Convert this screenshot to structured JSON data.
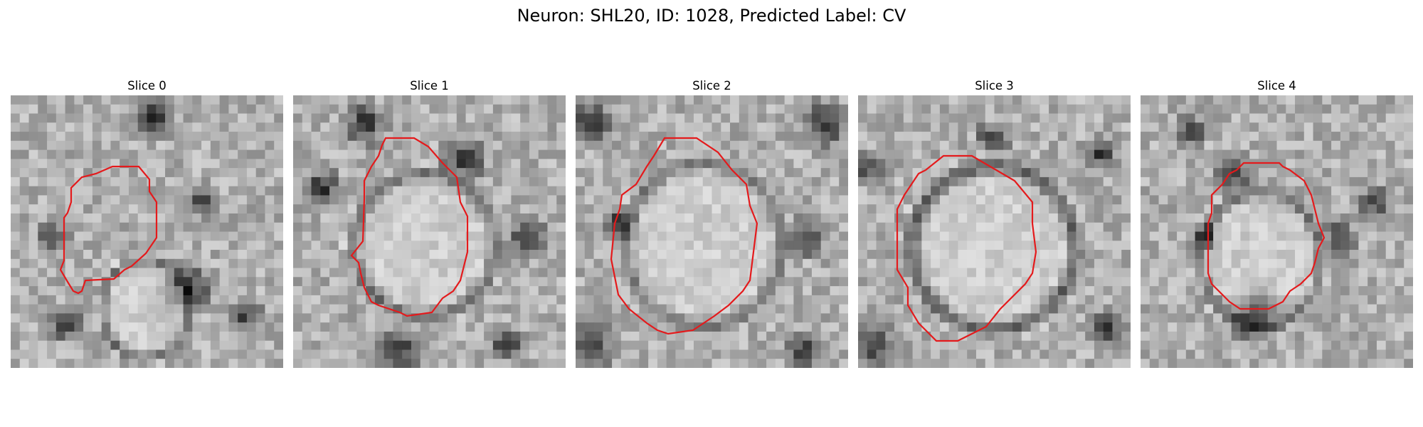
{
  "figure": {
    "title": "Neuron: SHL20, ID: 1028, Predicted Label: CV"
  },
  "panels": [
    {
      "title": "Slice 0"
    },
    {
      "title": "Slice 1"
    },
    {
      "title": "Slice 2"
    },
    {
      "title": "Slice 3"
    },
    {
      "title": "Slice 4"
    }
  ],
  "colors": {
    "contour": "#e41a1c",
    "background": "#ffffff"
  }
}
